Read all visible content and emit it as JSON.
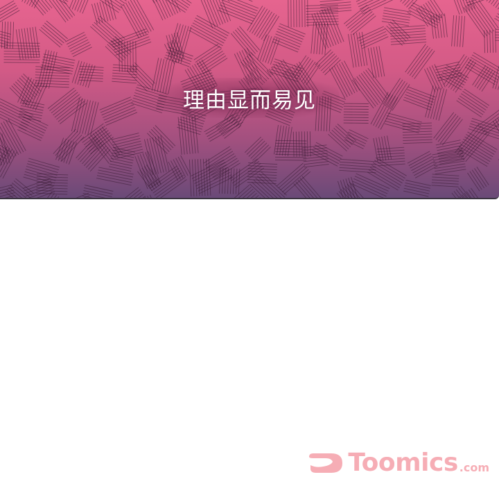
{
  "panel": {
    "caption": "理由显而易见"
  },
  "watermark": {
    "brand": "Toomics",
    "domain_suffix": ".com",
    "logo_icon": "toomics-logo-icon",
    "color": "#f06b7a"
  },
  "colors": {
    "panel_top": "#e6648f",
    "panel_bottom": "#6a4a78",
    "background": "#ffffff"
  }
}
